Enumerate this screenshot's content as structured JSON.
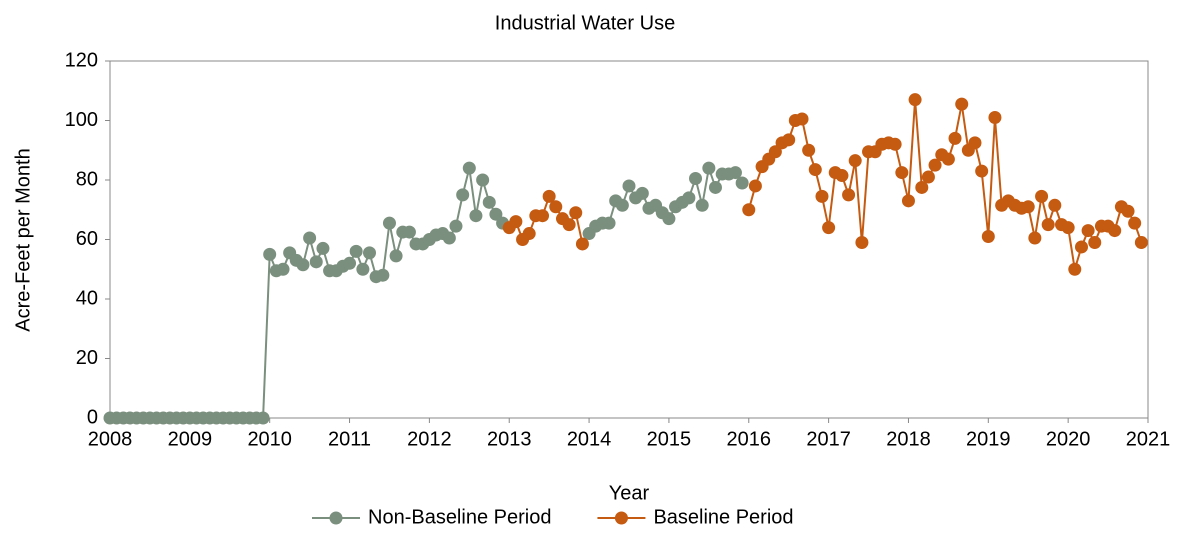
{
  "chart_data": {
    "type": "line",
    "title": "Industrial Water Use",
    "x_label": "Year",
    "y_label": "Acre-Feet per Month",
    "xlim": [
      2008,
      2021
    ],
    "xticks": [
      2008,
      2009,
      2010,
      2011,
      2012,
      2013,
      2014,
      2015,
      2016,
      2017,
      2018,
      2019,
      2020,
      2021
    ],
    "ylim": [
      0,
      120
    ],
    "yticks": [
      0,
      20,
      40,
      60,
      80,
      100,
      120
    ],
    "grid": false,
    "legend": "bottom",
    "x": [
      2008,
      2008.083,
      2008.167,
      2008.25,
      2008.333,
      2008.417,
      2008.5,
      2008.583,
      2008.667,
      2008.75,
      2008.833,
      2008.917,
      2009,
      2009.083,
      2009.167,
      2009.25,
      2009.333,
      2009.417,
      2009.5,
      2009.583,
      2009.667,
      2009.75,
      2009.833,
      2009.917,
      2010,
      2010.083,
      2010.167,
      2010.25,
      2010.333,
      2010.417,
      2010.5,
      2010.583,
      2010.667,
      2010.75,
      2010.833,
      2010.917,
      2011,
      2011.083,
      2011.167,
      2011.25,
      2011.333,
      2011.417,
      2011.5,
      2011.583,
      2011.667,
      2011.75,
      2011.833,
      2011.917,
      2012,
      2012.083,
      2012.167,
      2012.25,
      2012.333,
      2012.417,
      2012.5,
      2012.583,
      2012.667,
      2012.75,
      2012.833,
      2012.917,
      2013,
      2013.083,
      2013.167,
      2013.25,
      2013.333,
      2013.417,
      2013.5,
      2013.583,
      2013.667,
      2013.75,
      2013.833,
      2013.917,
      2014,
      2014.083,
      2014.167,
      2014.25,
      2014.333,
      2014.417,
      2014.5,
      2014.583,
      2014.667,
      2014.75,
      2014.833,
      2014.917,
      2015,
      2015.083,
      2015.167,
      2015.25,
      2015.333,
      2015.417,
      2015.5,
      2015.583,
      2015.667,
      2015.75,
      2015.833,
      2015.917,
      2016,
      2016.083,
      2016.167,
      2016.25,
      2016.333,
      2016.417,
      2016.5,
      2016.583,
      2016.667,
      2016.75,
      2016.833,
      2016.917,
      2017,
      2017.083,
      2017.167,
      2017.25,
      2017.333,
      2017.417,
      2017.5,
      2017.583,
      2017.667,
      2017.75,
      2017.833,
      2017.917,
      2018,
      2018.083,
      2018.167,
      2018.25,
      2018.333,
      2018.417,
      2018.5,
      2018.583,
      2018.667,
      2018.75,
      2018.833,
      2018.917,
      2019,
      2019.083,
      2019.167,
      2019.25,
      2019.333,
      2019.417,
      2019.5,
      2019.583,
      2019.667,
      2019.75,
      2019.833,
      2019.917,
      2020,
      2020.083,
      2020.167,
      2020.25,
      2020.333,
      2020.417,
      2020.5,
      2020.583,
      2020.667,
      2020.75,
      2020.833,
      2020.917
    ],
    "series": [
      {
        "name": "Non-Baseline Period",
        "color": "#7b8f7e",
        "values": [
          0,
          0,
          0,
          0,
          0,
          0,
          0,
          0,
          0,
          0,
          0,
          0,
          0,
          0,
          0,
          0,
          0,
          0,
          0,
          0,
          0,
          0,
          0,
          0,
          55,
          49.5,
          50,
          55.5,
          53,
          51.5,
          60.5,
          52.5,
          57,
          49.5,
          49.5,
          51,
          52,
          56,
          50,
          55.5,
          47.5,
          48,
          65.5,
          54.5,
          62.5,
          62.5,
          58.5,
          58.5,
          60,
          61.5,
          62,
          60.5,
          64.5,
          75,
          84,
          68,
          80,
          72.5,
          68.5,
          65.5,
          null,
          null,
          null,
          null,
          null,
          null,
          null,
          null,
          null,
          null,
          null,
          null,
          62,
          64.5,
          65.5,
          65.5,
          73,
          71.5,
          78,
          74,
          75.5,
          70.5,
          71.5,
          69,
          67,
          71,
          72.5,
          74,
          80.5,
          71.5,
          84,
          77.5,
          82,
          82,
          82.5,
          79,
          null,
          null,
          null,
          null,
          null,
          null,
          null,
          null,
          null,
          null,
          null,
          null,
          null,
          null,
          null,
          null,
          null,
          null,
          null,
          null,
          null,
          null,
          null,
          null,
          null,
          null,
          null,
          null,
          null,
          null,
          null,
          null,
          null,
          null,
          null,
          null,
          null,
          null,
          null,
          null,
          null,
          null,
          null,
          null,
          null,
          null,
          null,
          null,
          null,
          null,
          null,
          null,
          null,
          null,
          null,
          null,
          null,
          null,
          null,
          null
        ]
      },
      {
        "name": "Baseline Period",
        "color": "#c55a11",
        "values": [
          null,
          null,
          null,
          null,
          null,
          null,
          null,
          null,
          null,
          null,
          null,
          null,
          null,
          null,
          null,
          null,
          null,
          null,
          null,
          null,
          null,
          null,
          null,
          null,
          null,
          null,
          null,
          null,
          null,
          null,
          null,
          null,
          null,
          null,
          null,
          null,
          null,
          null,
          null,
          null,
          null,
          null,
          null,
          null,
          null,
          null,
          null,
          null,
          null,
          null,
          null,
          null,
          null,
          null,
          null,
          null,
          null,
          null,
          null,
          null,
          64,
          66,
          60,
          62,
          68,
          68,
          74.5,
          71,
          67,
          65,
          69,
          58.5,
          null,
          null,
          null,
          null,
          null,
          null,
          null,
          null,
          null,
          null,
          null,
          null,
          null,
          null,
          null,
          null,
          null,
          null,
          null,
          null,
          null,
          null,
          null,
          null,
          70,
          78,
          84.5,
          87,
          89.5,
          92.5,
          93.5,
          100,
          100.5,
          90,
          83.5,
          74.5,
          64,
          82.5,
          81.5,
          75,
          86.5,
          59,
          89.5,
          89.5,
          92,
          92.5,
          92,
          82.5,
          73,
          107,
          77.5,
          81,
          85,
          88.5,
          87,
          94,
          105.5,
          90,
          92.5,
          83,
          61,
          101,
          71.5,
          73,
          71.5,
          70.5,
          71,
          60.5,
          74.5,
          65,
          71.5,
          65,
          64,
          50,
          57.5,
          63,
          59,
          64.5,
          64.5,
          63,
          71,
          69.5,
          65.5,
          59
        ]
      }
    ]
  }
}
